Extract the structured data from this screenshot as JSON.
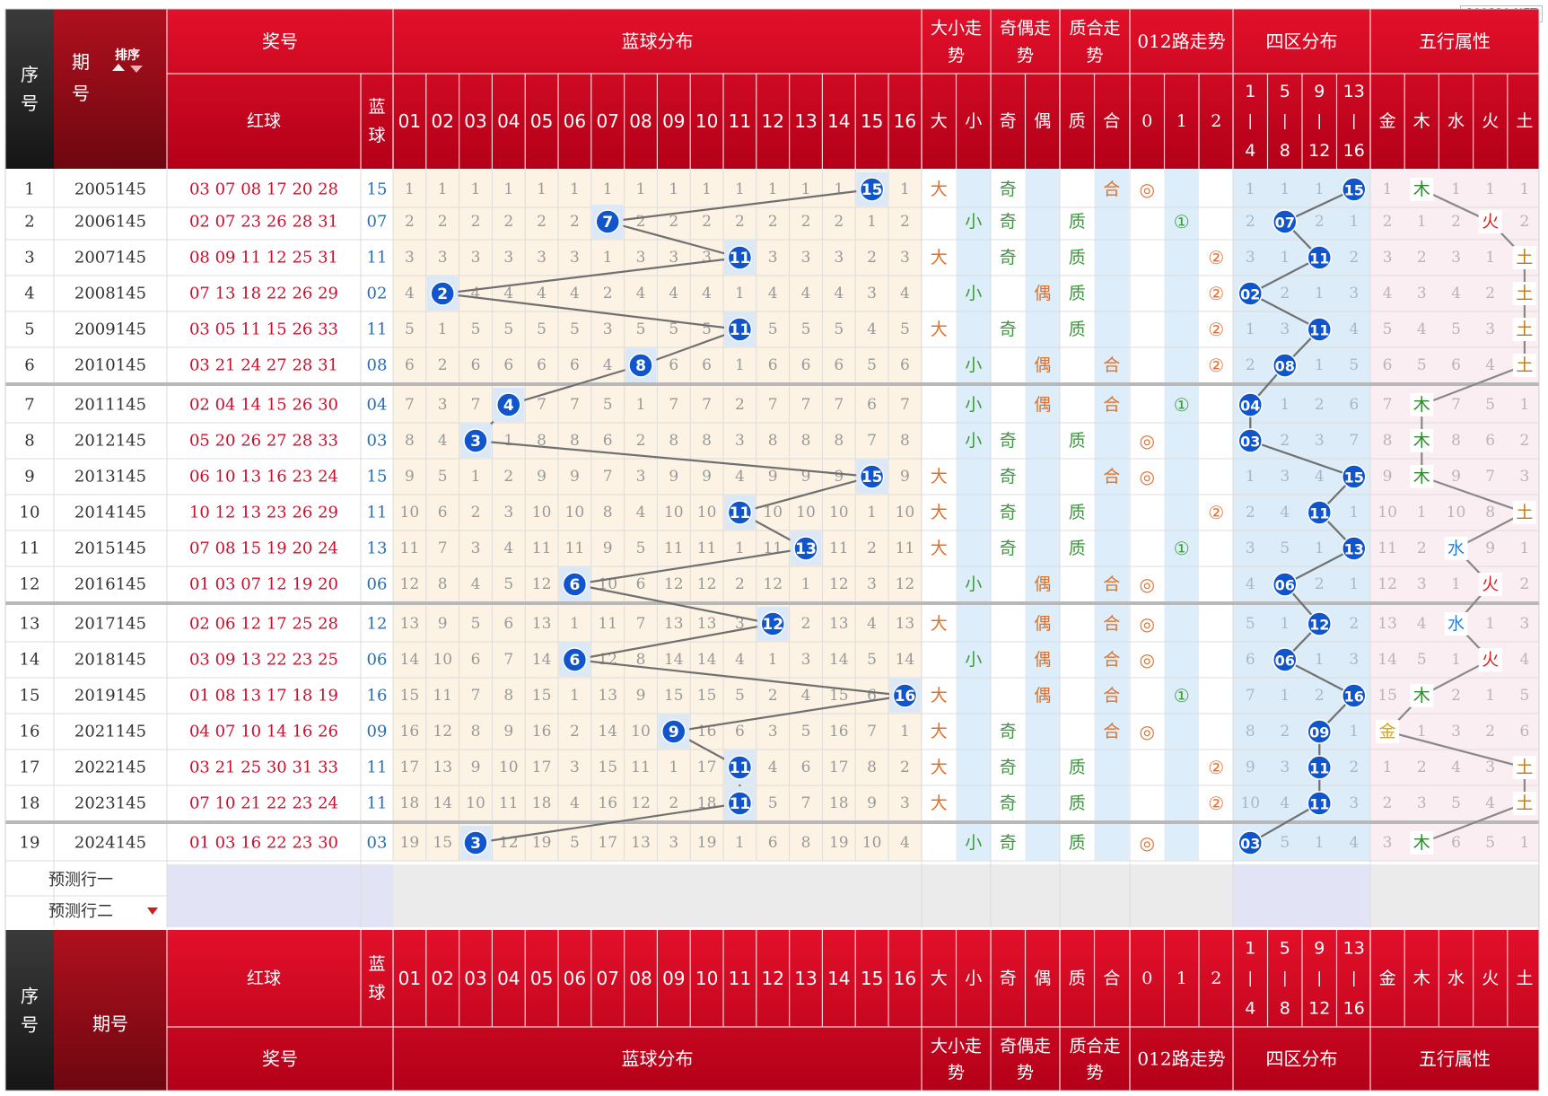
{
  "watermark": "800820.NET",
  "header": {
    "seq": "序号",
    "period": "期号",
    "sort": "排序",
    "award": "奖号",
    "blue_dist": "蓝球分布",
    "big_small": "大小走势",
    "odd_even": "奇偶走势",
    "prime_comp": "质合走势",
    "road012": "012路走势",
    "zone4": "四区分布",
    "wuxing": "五行属性",
    "red_ball": "红球",
    "blue_ball": "蓝球",
    "bs_cols": [
      "大",
      "小"
    ],
    "oe_cols": [
      "奇",
      "偶"
    ],
    "pc_cols": [
      "质",
      "合"
    ],
    "road_cols": [
      "0",
      "1",
      "2"
    ],
    "zone_cols": [
      [
        "1",
        "|",
        "4"
      ],
      [
        "5",
        "|",
        "8"
      ],
      [
        "9",
        "|",
        "12"
      ],
      [
        "13",
        "|",
        "16"
      ]
    ],
    "wx_cols": [
      "金",
      "木",
      "水",
      "火",
      "土"
    ]
  },
  "predict_rows": [
    "预测行一",
    "预测行二"
  ],
  "colors": {
    "header_red": "#c8001e",
    "header_dark": "#222222",
    "red_text": "#c8102e",
    "blue_text": "#2a6fb0",
    "ball_blue": "#1155cc",
    "blue_zone_bg": "#fdf3e4",
    "bs_bg": "#ddeefa",
    "zone_bg": "#dcecf8",
    "wx_bg": "#fbeef2",
    "line": "#707070",
    "omit": "#999999",
    "bs_big": "#e0712a",
    "bs_small": "#3a9a3a",
    "road_mark": "#e07030",
    "road_one": "#35a035"
  },
  "chart_data": {
    "type": "table",
    "series_symbols": {
      "big": "大",
      "small": "小",
      "odd": "奇",
      "even": "偶",
      "prime": "质",
      "composite": "合",
      "road0": "◎",
      "road1": "①",
      "road2": "②",
      "metal": "金",
      "wood": "木",
      "water": "水",
      "fire": "火",
      "earth": "土"
    },
    "rows": [
      {
        "no": "1",
        "period": "2005145",
        "red": "03 07 08 17 20 28",
        "blue": "15",
        "blue_n": 15,
        "omit": [
          "1",
          "1",
          "1",
          "1",
          "1",
          "1",
          "1",
          "1",
          "1",
          "1",
          "1",
          "1",
          "1",
          "1",
          "15",
          "1"
        ],
        "bs": "big",
        "oe": "odd",
        "pc": "composite",
        "road": "0",
        "zone": 4,
        "zone_omit": [
          "1",
          "1",
          "1",
          "15"
        ],
        "wx": "wood",
        "wx_omit": [
          "1",
          "木",
          "1",
          "1",
          "1"
        ]
      },
      {
        "no": "2",
        "period": "2006145",
        "red": "02 07 23 26 28 31",
        "blue": "07",
        "blue_n": 7,
        "omit": [
          "2",
          "2",
          "2",
          "2",
          "2",
          "2",
          "7",
          "2",
          "2",
          "2",
          "2",
          "2",
          "2",
          "2",
          "1",
          "2"
        ],
        "bs": "small",
        "oe": "odd",
        "pc": "prime",
        "road": "1",
        "zone": 2,
        "zone_omit": [
          "2",
          "07",
          "2",
          "1"
        ],
        "wx": "fire",
        "wx_omit": [
          "2",
          "1",
          "2",
          "火",
          "2"
        ]
      },
      {
        "no": "3",
        "period": "2007145",
        "red": "08 09 11 12 25 31",
        "blue": "11",
        "blue_n": 11,
        "omit": [
          "3",
          "3",
          "3",
          "3",
          "3",
          "3",
          "1",
          "3",
          "3",
          "3",
          "11",
          "3",
          "3",
          "3",
          "2",
          "3"
        ],
        "bs": "big",
        "oe": "odd",
        "pc": "prime",
        "road": "2",
        "zone": 3,
        "zone_omit": [
          "3",
          "1",
          "11",
          "2"
        ],
        "wx": "earth",
        "wx_omit": [
          "3",
          "2",
          "3",
          "1",
          "土"
        ]
      },
      {
        "no": "4",
        "period": "2008145",
        "red": "07 13 18 22 26 29",
        "blue": "02",
        "blue_n": 2,
        "omit": [
          "4",
          "2",
          "4",
          "4",
          "4",
          "4",
          "2",
          "4",
          "4",
          "4",
          "1",
          "4",
          "4",
          "4",
          "3",
          "4"
        ],
        "bs": "small",
        "oe": "even",
        "pc": "prime",
        "road": "2",
        "zone": 1,
        "zone_omit": [
          "02",
          "2",
          "1",
          "3"
        ],
        "wx": "earth",
        "wx_omit": [
          "4",
          "3",
          "4",
          "2",
          "土"
        ]
      },
      {
        "no": "5",
        "period": "2009145",
        "red": "03 05 11 15 26 33",
        "blue": "11",
        "blue_n": 11,
        "omit": [
          "5",
          "1",
          "5",
          "5",
          "5",
          "5",
          "3",
          "5",
          "5",
          "5",
          "11",
          "5",
          "5",
          "5",
          "4",
          "5"
        ],
        "bs": "big",
        "oe": "odd",
        "pc": "prime",
        "road": "2",
        "zone": 3,
        "zone_omit": [
          "1",
          "3",
          "11",
          "4"
        ],
        "wx": "earth",
        "wx_omit": [
          "5",
          "4",
          "5",
          "3",
          "土"
        ]
      },
      {
        "no": "6",
        "period": "2010145",
        "red": "03 21 24 27 28 31",
        "blue": "08",
        "blue_n": 8,
        "omit": [
          "6",
          "2",
          "6",
          "6",
          "6",
          "6",
          "4",
          "8",
          "6",
          "6",
          "1",
          "6",
          "6",
          "6",
          "5",
          "6"
        ],
        "bs": "small",
        "oe": "even",
        "pc": "composite",
        "road": "2",
        "zone": 2,
        "zone_omit": [
          "2",
          "08",
          "1",
          "5"
        ],
        "wx": "earth",
        "wx_omit": [
          "6",
          "5",
          "6",
          "4",
          "土"
        ]
      },
      {
        "no": "7",
        "period": "2011145",
        "red": "02 04 14 15 26 30",
        "blue": "04",
        "blue_n": 4,
        "omit": [
          "7",
          "3",
          "7",
          "4",
          "7",
          "7",
          "5",
          "1",
          "7",
          "7",
          "2",
          "7",
          "7",
          "7",
          "6",
          "7"
        ],
        "bs": "small",
        "oe": "even",
        "pc": "composite",
        "road": "1",
        "zone": 1,
        "zone_omit": [
          "04",
          "1",
          "2",
          "6"
        ],
        "wx": "wood",
        "wx_omit": [
          "7",
          "木",
          "7",
          "5",
          "1"
        ]
      },
      {
        "no": "8",
        "period": "2012145",
        "red": "05 20 26 27 28 33",
        "blue": "03",
        "blue_n": 3,
        "omit": [
          "8",
          "4",
          "3",
          "1",
          "8",
          "8",
          "6",
          "2",
          "8",
          "8",
          "3",
          "8",
          "8",
          "8",
          "7",
          "8"
        ],
        "bs": "small",
        "oe": "odd",
        "pc": "prime",
        "road": "0",
        "zone": 1,
        "zone_omit": [
          "03",
          "2",
          "3",
          "7"
        ],
        "wx": "wood",
        "wx_omit": [
          "8",
          "木",
          "8",
          "6",
          "2"
        ]
      },
      {
        "no": "9",
        "period": "2013145",
        "red": "06 10 13 16 23 24",
        "blue": "15",
        "blue_n": 15,
        "omit": [
          "9",
          "5",
          "1",
          "2",
          "9",
          "9",
          "7",
          "3",
          "9",
          "9",
          "4",
          "9",
          "9",
          "9",
          "15",
          "9"
        ],
        "bs": "big",
        "oe": "odd",
        "pc": "composite",
        "road": "0",
        "zone": 4,
        "zone_omit": [
          "1",
          "3",
          "4",
          "15"
        ],
        "wx": "wood",
        "wx_omit": [
          "9",
          "木",
          "9",
          "7",
          "3"
        ]
      },
      {
        "no": "10",
        "period": "2014145",
        "red": "10 12 13 23 26 29",
        "blue": "11",
        "blue_n": 11,
        "omit": [
          "10",
          "6",
          "2",
          "3",
          "10",
          "10",
          "8",
          "4",
          "10",
          "10",
          "11",
          "10",
          "10",
          "10",
          "1",
          "10"
        ],
        "bs": "big",
        "oe": "odd",
        "pc": "prime",
        "road": "2",
        "zone": 3,
        "zone_omit": [
          "2",
          "4",
          "11",
          "1"
        ],
        "wx": "earth",
        "wx_omit": [
          "10",
          "1",
          "10",
          "8",
          "土"
        ]
      },
      {
        "no": "11",
        "period": "2015145",
        "red": "07 08 15 19 20 24",
        "blue": "13",
        "blue_n": 13,
        "omit": [
          "11",
          "7",
          "3",
          "4",
          "11",
          "11",
          "9",
          "5",
          "11",
          "11",
          "1",
          "11",
          "13",
          "11",
          "2",
          "11"
        ],
        "bs": "big",
        "oe": "odd",
        "pc": "prime",
        "road": "1",
        "zone": 4,
        "zone_omit": [
          "3",
          "5",
          "1",
          "13"
        ],
        "wx": "water",
        "wx_omit": [
          "11",
          "2",
          "水",
          "9",
          "1"
        ]
      },
      {
        "no": "12",
        "period": "2016145",
        "red": "01 03 07 12 19 20",
        "blue": "06",
        "blue_n": 6,
        "omit": [
          "12",
          "8",
          "4",
          "5",
          "12",
          "6",
          "10",
          "6",
          "12",
          "12",
          "2",
          "12",
          "1",
          "12",
          "3",
          "12"
        ],
        "bs": "small",
        "oe": "even",
        "pc": "composite",
        "road": "0",
        "zone": 2,
        "zone_omit": [
          "4",
          "06",
          "2",
          "1"
        ],
        "wx": "fire",
        "wx_omit": [
          "12",
          "3",
          "1",
          "火",
          "2"
        ]
      },
      {
        "no": "13",
        "period": "2017145",
        "red": "02 06 12 17 25 28",
        "blue": "12",
        "blue_n": 12,
        "omit": [
          "13",
          "9",
          "5",
          "6",
          "13",
          "1",
          "11",
          "7",
          "13",
          "13",
          "3",
          "12",
          "2",
          "13",
          "4",
          "13"
        ],
        "bs": "big",
        "oe": "even",
        "pc": "composite",
        "road": "0",
        "zone": 3,
        "zone_omit": [
          "5",
          "1",
          "12",
          "2"
        ],
        "wx": "water",
        "wx_omit": [
          "13",
          "4",
          "水",
          "1",
          "3"
        ]
      },
      {
        "no": "14",
        "period": "2018145",
        "red": "03 09 13 22 23 25",
        "blue": "06",
        "blue_n": 6,
        "omit": [
          "14",
          "10",
          "6",
          "7",
          "14",
          "6",
          "12",
          "8",
          "14",
          "14",
          "4",
          "1",
          "3",
          "14",
          "5",
          "14"
        ],
        "bs": "small",
        "oe": "even",
        "pc": "composite",
        "road": "0",
        "zone": 2,
        "zone_omit": [
          "6",
          "06",
          "1",
          "3"
        ],
        "wx": "fire",
        "wx_omit": [
          "14",
          "5",
          "1",
          "火",
          "4"
        ]
      },
      {
        "no": "15",
        "period": "2019145",
        "red": "01 08 13 17 18 19",
        "blue": "16",
        "blue_n": 16,
        "omit": [
          "15",
          "11",
          "7",
          "8",
          "15",
          "1",
          "13",
          "9",
          "15",
          "15",
          "5",
          "2",
          "4",
          "15",
          "6",
          "16"
        ],
        "bs": "big",
        "oe": "even",
        "pc": "composite",
        "road": "1",
        "zone": 4,
        "zone_omit": [
          "7",
          "1",
          "2",
          "16"
        ],
        "wx": "wood",
        "wx_omit": [
          "15",
          "木",
          "2",
          "1",
          "5"
        ]
      },
      {
        "no": "16",
        "period": "2021145",
        "red": "04 07 10 14 16 26",
        "blue": "09",
        "blue_n": 9,
        "omit": [
          "16",
          "12",
          "8",
          "9",
          "16",
          "2",
          "14",
          "10",
          "9",
          "16",
          "6",
          "3",
          "5",
          "16",
          "7",
          "1"
        ],
        "bs": "big",
        "oe": "odd",
        "pc": "composite",
        "road": "0",
        "zone": 3,
        "zone_omit": [
          "8",
          "2",
          "09",
          "1"
        ],
        "wx": "metal",
        "wx_omit": [
          "金",
          "1",
          "3",
          "2",
          "6"
        ]
      },
      {
        "no": "17",
        "period": "2022145",
        "red": "03 21 25 30 31 33",
        "blue": "11",
        "blue_n": 11,
        "omit": [
          "17",
          "13",
          "9",
          "10",
          "17",
          "3",
          "15",
          "11",
          "1",
          "17",
          "11",
          "4",
          "6",
          "17",
          "8",
          "2"
        ],
        "bs": "big",
        "oe": "odd",
        "pc": "prime",
        "road": "2",
        "zone": 3,
        "zone_omit": [
          "9",
          "3",
          "11",
          "2"
        ],
        "wx": "earth",
        "wx_omit": [
          "1",
          "2",
          "4",
          "3",
          "土"
        ]
      },
      {
        "no": "18",
        "period": "2023145",
        "red": "07 10 21 22 23 24",
        "blue": "11",
        "blue_n": 11,
        "omit": [
          "18",
          "14",
          "10",
          "11",
          "18",
          "4",
          "16",
          "12",
          "2",
          "18",
          "11",
          "5",
          "7",
          "18",
          "9",
          "3"
        ],
        "bs": "big",
        "oe": "odd",
        "pc": "prime",
        "road": "2",
        "zone": 3,
        "zone_omit": [
          "10",
          "4",
          "11",
          "3"
        ],
        "wx": "earth",
        "wx_omit": [
          "2",
          "3",
          "5",
          "4",
          "土"
        ]
      },
      {
        "no": "19",
        "period": "2024145",
        "red": "01 03 16 22 23 30",
        "blue": "03",
        "blue_n": 3,
        "omit": [
          "19",
          "15",
          "3",
          "12",
          "19",
          "5",
          "17",
          "13",
          "3",
          "19",
          "1",
          "6",
          "8",
          "19",
          "10",
          "4"
        ],
        "bs": "small",
        "oe": "odd",
        "pc": "prime",
        "road": "0",
        "zone": 1,
        "zone_omit": [
          "03",
          "5",
          "1",
          "4"
        ],
        "wx": "wood",
        "wx_omit": [
          "3",
          "木",
          "6",
          "5",
          "1"
        ]
      }
    ]
  }
}
